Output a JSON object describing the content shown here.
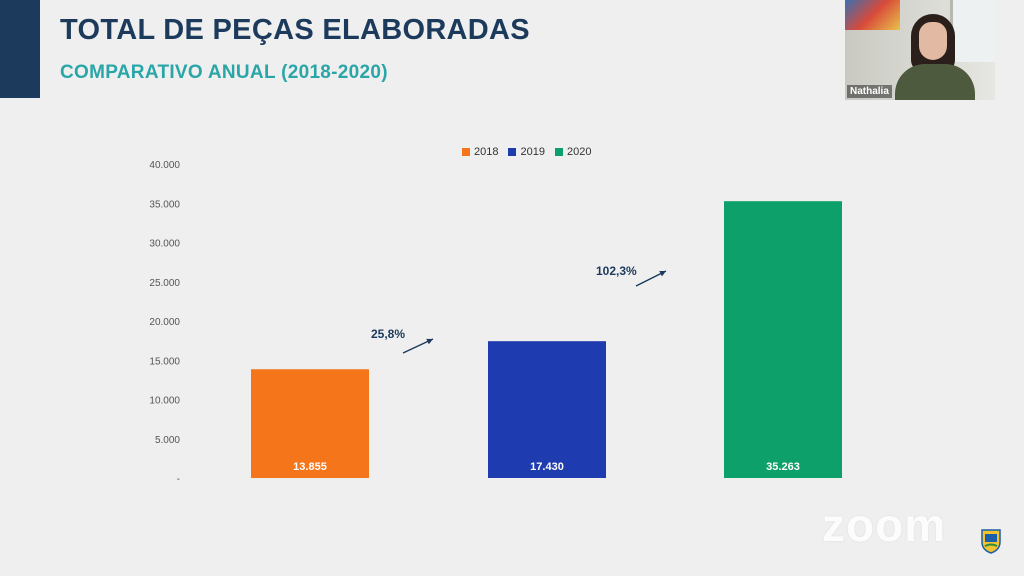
{
  "header": {
    "title": "TOTAL DE PEÇAS ELABORADAS",
    "subtitle": "COMPARATIVO ANUAL (2018-2020)"
  },
  "webcam": {
    "participant_name": "Nathalia"
  },
  "watermark": {
    "logo_text": "zoom"
  },
  "colors": {
    "title": "#1b3a5c",
    "subtitle": "#2aa6a8",
    "accent": "#1b3a5c"
  },
  "chart_data": {
    "type": "bar",
    "title": "",
    "xlabel": "",
    "ylabel": "",
    "categories": [
      "2018",
      "2019",
      "2020"
    ],
    "series": [
      {
        "name": "2018",
        "color": "#f5751a",
        "value": 13855,
        "label": "13.855"
      },
      {
        "name": "2019",
        "color": "#1f3bb0",
        "value": 17430,
        "label": "17.430"
      },
      {
        "name": "2020",
        "color": "#0ea06a",
        "value": 35263,
        "label": "35.263"
      }
    ],
    "ylim": [
      0,
      40000
    ],
    "yticks": [
      {
        "value": 40000,
        "label": "40.000"
      },
      {
        "value": 35000,
        "label": "35.000"
      },
      {
        "value": 30000,
        "label": "30.000"
      },
      {
        "value": 25000,
        "label": "25.000"
      },
      {
        "value": 20000,
        "label": "20.000"
      },
      {
        "value": 15000,
        "label": "15.000"
      },
      {
        "value": 10000,
        "label": "10.000"
      },
      {
        "value": 5000,
        "label": "5.000"
      },
      {
        "value": 0,
        "label": "-"
      }
    ],
    "annotations": [
      {
        "text": "25,8%",
        "between": [
          "2018",
          "2019"
        ]
      },
      {
        "text": "102,3%",
        "between": [
          "2019",
          "2020"
        ]
      }
    ],
    "legend_position": "top-center",
    "grid": false
  }
}
